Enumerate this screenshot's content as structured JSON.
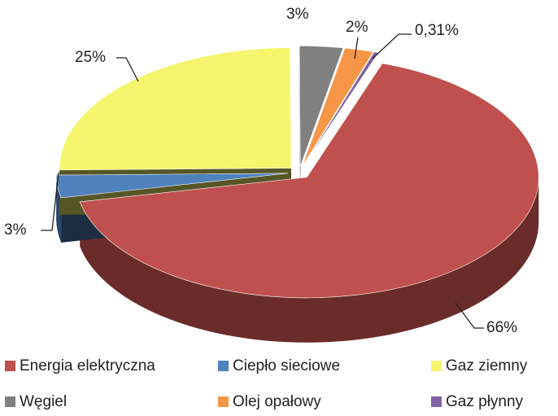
{
  "chart_data": {
    "type": "pie3d",
    "categories": [
      "Energia elektryczna",
      "Ciepło sieciowe",
      "Gaz ziemny",
      "Węgiel",
      "Olej opałowy",
      "Gaz płynny"
    ],
    "values": [
      66,
      3,
      25,
      3,
      2,
      0.31
    ],
    "value_labels": [
      "66%",
      "3%",
      "25%",
      "3%",
      "2%",
      "0,31%"
    ],
    "colors": [
      "#c0504d",
      "#4f81bd",
      "#f5f56e",
      "#808080",
      "#f79646",
      "#8064a2"
    ],
    "legend": "bottom"
  }
}
